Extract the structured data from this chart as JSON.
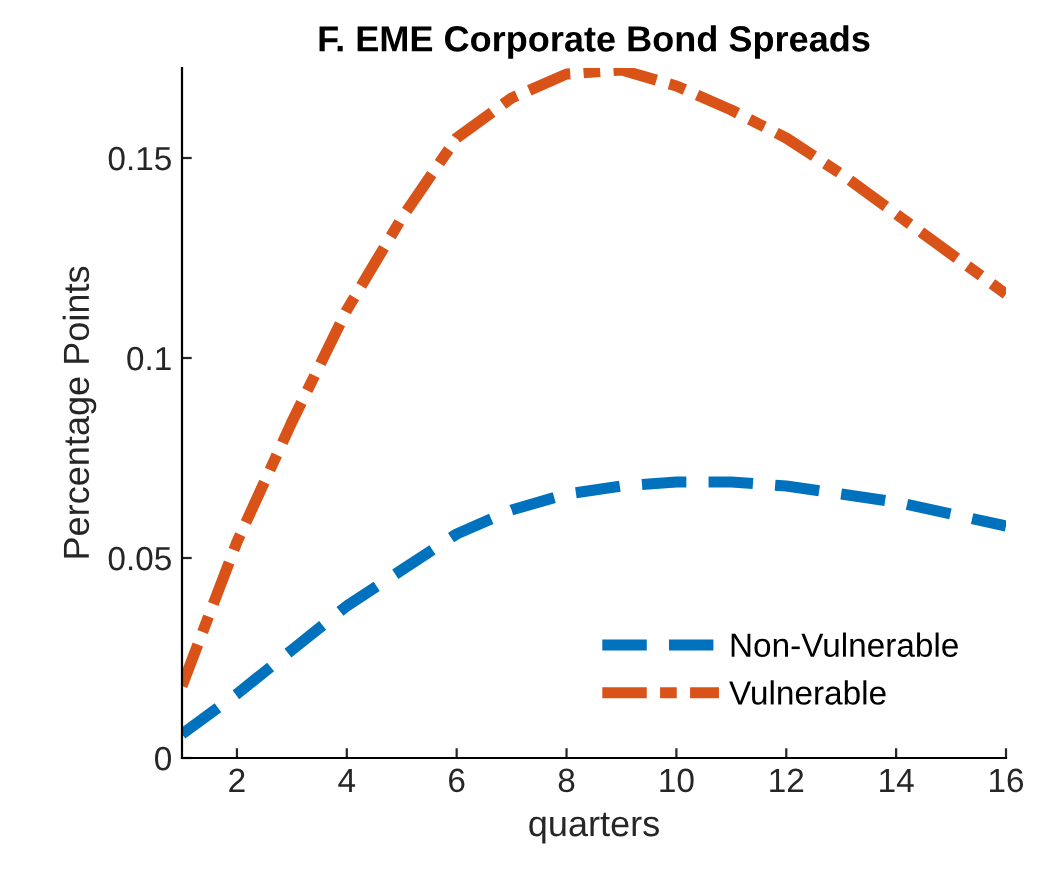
{
  "chart_data": {
    "type": "line",
    "title": "F. EME Corporate Bond Spreads",
    "xlabel": "quarters",
    "ylabel": "Percentage Points",
    "x": [
      1,
      2,
      3,
      4,
      5,
      6,
      7,
      8,
      9,
      10,
      11,
      12,
      13,
      14,
      15,
      16
    ],
    "series": [
      {
        "name": "Non-Vulnerable",
        "color": "#0072bd",
        "line_style": "dashed",
        "values": [
          0.006,
          0.016,
          0.027,
          0.038,
          0.047,
          0.056,
          0.062,
          0.066,
          0.068,
          0.069,
          0.069,
          0.068,
          0.066,
          0.064,
          0.061,
          0.058
        ]
      },
      {
        "name": "Vulnerable",
        "color": "#d95319",
        "line_style": "dashdot",
        "values": [
          0.018,
          0.054,
          0.084,
          0.112,
          0.135,
          0.155,
          0.165,
          0.171,
          0.172,
          0.168,
          0.162,
          0.155,
          0.146,
          0.136,
          0.126,
          0.116
        ]
      }
    ],
    "xlim": [
      1,
      16
    ],
    "ylim": [
      0,
      0.1725
    ],
    "xticks": [
      2,
      4,
      6,
      8,
      10,
      12,
      14,
      16
    ],
    "yticks": [
      0,
      0.05,
      0.1,
      0.15
    ],
    "grid": false,
    "legend": "bottom right",
    "marker": "none"
  }
}
